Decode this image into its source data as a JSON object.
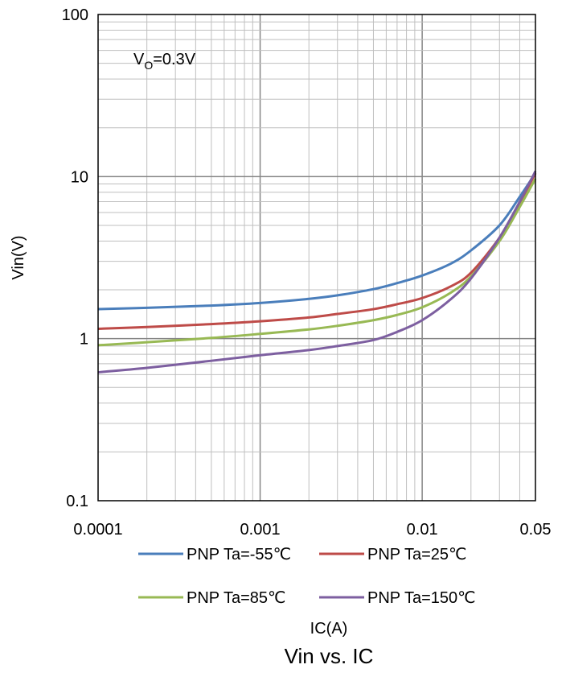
{
  "chart_data": {
    "type": "line",
    "title": "Vin vs. IC",
    "xlabel": "IC(A)",
    "ylabel": "Vin(V)",
    "x_scale": "log",
    "y_scale": "log",
    "xlim": [
      0.0001,
      0.05
    ],
    "ylim": [
      0.1,
      100
    ],
    "x_ticks": [
      "0.0001",
      "0.001",
      "0.01",
      "0.05"
    ],
    "y_ticks": [
      "0.1",
      "1",
      "10",
      "100"
    ],
    "grid": true,
    "legend_position": "bottom",
    "annotation": {
      "main": "V",
      "sub": "O",
      "rest": "=0.3V"
    },
    "series": [
      {
        "name": "PNP Ta=-55℃",
        "color": "#4a7ebb",
        "x": [
          0.0001,
          0.0002,
          0.0005,
          0.001,
          0.002,
          0.003,
          0.005,
          0.007,
          0.01,
          0.015,
          0.02,
          0.03,
          0.04,
          0.05
        ],
        "y": [
          1.52,
          1.55,
          1.6,
          1.66,
          1.76,
          1.85,
          2.02,
          2.2,
          2.45,
          2.9,
          3.5,
          5.0,
          7.5,
          10.5
        ]
      },
      {
        "name": "PNP Ta=25℃",
        "color": "#be4b48",
        "x": [
          0.0001,
          0.0002,
          0.0005,
          0.001,
          0.002,
          0.003,
          0.005,
          0.007,
          0.01,
          0.015,
          0.02,
          0.03,
          0.04,
          0.05
        ],
        "y": [
          1.15,
          1.18,
          1.23,
          1.28,
          1.35,
          1.42,
          1.52,
          1.63,
          1.78,
          2.1,
          2.55,
          4.2,
          6.9,
          10.5
        ]
      },
      {
        "name": "PNP Ta=85℃",
        "color": "#98b954",
        "x": [
          0.0001,
          0.0002,
          0.0005,
          0.001,
          0.002,
          0.003,
          0.005,
          0.007,
          0.01,
          0.015,
          0.02,
          0.03,
          0.04,
          0.05
        ],
        "y": [
          0.91,
          0.95,
          1.01,
          1.07,
          1.14,
          1.2,
          1.3,
          1.4,
          1.56,
          1.92,
          2.42,
          4.0,
          6.5,
          9.7
        ]
      },
      {
        "name": "PNP Ta=150℃",
        "color": "#7d5fa0",
        "x": [
          0.0001,
          0.0002,
          0.0005,
          0.001,
          0.002,
          0.003,
          0.005,
          0.007,
          0.01,
          0.015,
          0.02,
          0.03,
          0.04,
          0.05
        ],
        "y": [
          0.62,
          0.66,
          0.73,
          0.79,
          0.85,
          0.9,
          0.98,
          1.1,
          1.3,
          1.75,
          2.35,
          4.2,
          7.0,
          10.8
        ]
      }
    ]
  }
}
